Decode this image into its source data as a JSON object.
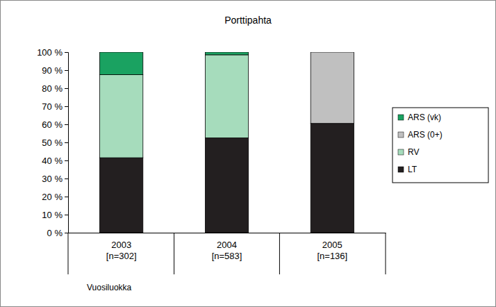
{
  "chart_data": {
    "type": "bar",
    "stacked": true,
    "title": "Porttipahta",
    "x_label": "Vuosiluokka",
    "categories": [
      "2003\n[n=302]",
      "2004\n[n=583]",
      "2005\n[n=136]"
    ],
    "series": [
      {
        "name": "LT",
        "color": "#231f20",
        "values": [
          41.5,
          52.5,
          60.5
        ]
      },
      {
        "name": "RV",
        "color": "#a6dcbc",
        "values": [
          46,
          46,
          0
        ]
      },
      {
        "name": "ARS (0+)",
        "color": "#c0c0c0",
        "values": [
          0,
          0,
          39.5
        ]
      },
      {
        "name": "ARS (vk)",
        "color": "#1aa261",
        "values": [
          12.5,
          1.5,
          0
        ]
      }
    ],
    "ylim": [
      0,
      100
    ],
    "yticks": [
      {
        "value": 0,
        "label": "0 %"
      },
      {
        "value": 10,
        "label": "10 %"
      },
      {
        "value": 20,
        "label": "20 %"
      },
      {
        "value": 30,
        "label": "30 %"
      },
      {
        "value": 40,
        "label": "40 %"
      },
      {
        "value": 50,
        "label": "50 %"
      },
      {
        "value": 60,
        "label": "60 %"
      },
      {
        "value": 70,
        "label": "70 %"
      },
      {
        "value": 80,
        "label": "80 %"
      },
      {
        "value": 90,
        "label": "90 %"
      },
      {
        "value": 100,
        "label": "100 %"
      }
    ],
    "grid": false,
    "legend": "right"
  }
}
